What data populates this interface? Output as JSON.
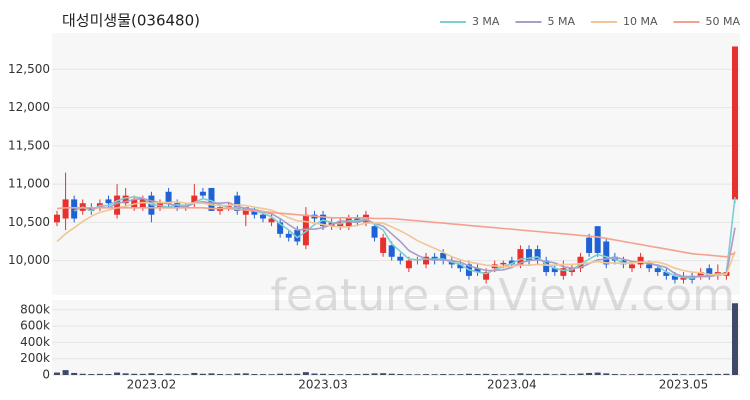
{
  "chart_data": {
    "type": "candlestick",
    "title": "대성미생물(036480)",
    "categories": [
      null,
      null,
      null,
      null,
      null,
      null,
      null,
      null,
      null,
      null,
      null,
      "2023.02",
      null,
      null,
      null,
      null,
      null,
      null,
      null,
      null,
      null,
      null,
      null,
      null,
      null,
      null,
      null,
      null,
      null,
      null,
      null,
      "2023.03",
      null,
      null,
      null,
      null,
      null,
      null,
      null,
      null,
      null,
      null,
      null,
      null,
      null,
      null,
      null,
      null,
      null,
      null,
      null,
      null,
      null,
      "2023.04",
      null,
      null,
      null,
      null,
      null,
      null,
      null,
      null,
      null,
      null,
      null,
      null,
      null,
      null,
      null,
      null,
      null,
      null,
      null,
      "2023.05",
      null,
      null,
      null,
      null,
      null,
      null
    ],
    "open": [
      10500,
      10550,
      10800,
      10650,
      10700,
      10700,
      10800,
      10600,
      10750,
      10700,
      10700,
      10850,
      10700,
      10900,
      10750,
      10700,
      10750,
      10900,
      10950,
      10650,
      10700,
      10850,
      10600,
      10650,
      10600,
      10500,
      10500,
      10350,
      10400,
      10200,
      10600,
      10600,
      10450,
      10450,
      10450,
      10550,
      10500,
      10450,
      10100,
      10200,
      10050,
      9900,
      10000,
      9950,
      10050,
      10100,
      10000,
      9950,
      9950,
      9900,
      9750,
      9900,
      9950,
      10000,
      9950,
      10150,
      10150,
      10000,
      9900,
      9800,
      9850,
      9900,
      10300,
      10450,
      10250,
      10050,
      10000,
      9900,
      9950,
      9950,
      9900,
      9850,
      9800,
      9750,
      9800,
      9800,
      9900,
      9800,
      9800,
      10800
    ],
    "high": [
      10650,
      11150,
      10850,
      10800,
      10750,
      10800,
      10850,
      11000,
      10950,
      10850,
      10850,
      10900,
      10800,
      10950,
      10800,
      10750,
      11000,
      10950,
      10950,
      10750,
      10750,
      10900,
      10700,
      10700,
      10650,
      10600,
      10550,
      10400,
      10450,
      10700,
      10650,
      10650,
      10550,
      10550,
      10600,
      10600,
      10650,
      10500,
      10350,
      10250,
      10100,
      10050,
      10050,
      10100,
      10100,
      10150,
      10050,
      10000,
      10000,
      9950,
      9900,
      10000,
      10000,
      10050,
      10200,
      10200,
      10200,
      10050,
      9950,
      10000,
      9950,
      10100,
      10350,
      10450,
      10300,
      10100,
      10050,
      10000,
      10100,
      10000,
      9950,
      9900,
      9850,
      9850,
      9850,
      9900,
      9950,
      9950,
      9900,
      12800
    ],
    "low": [
      10450,
      10400,
      10500,
      10600,
      10600,
      10650,
      10700,
      10550,
      10700,
      10650,
      10650,
      10500,
      10650,
      10700,
      10650,
      10650,
      10700,
      10800,
      10650,
      10600,
      10650,
      10600,
      10450,
      10550,
      10500,
      10450,
      10300,
      10250,
      10200,
      10150,
      10500,
      10400,
      10400,
      10400,
      10400,
      10450,
      10450,
      10250,
      10050,
      10000,
      9950,
      9850,
      9950,
      9900,
      9950,
      9950,
      9900,
      9850,
      9750,
      9800,
      9700,
      9850,
      9900,
      9900,
      9900,
      9950,
      9950,
      9800,
      9800,
      9750,
      9800,
      9850,
      10050,
      10050,
      9900,
      9950,
      9900,
      9850,
      9900,
      9850,
      9800,
      9750,
      9700,
      9700,
      9700,
      9750,
      9750,
      9750,
      9750,
      10750
    ],
    "close": [
      10600,
      10800,
      10550,
      10750,
      10650,
      10750,
      10750,
      10850,
      10850,
      10800,
      10800,
      10600,
      10750,
      10750,
      10700,
      10720,
      10850,
      10850,
      10650,
      10700,
      10720,
      10650,
      10700,
      10600,
      10550,
      10550,
      10350,
      10300,
      10250,
      10600,
      10550,
      10450,
      10500,
      10500,
      10550,
      10500,
      10600,
      10300,
      10300,
      10050,
      10000,
      10000,
      10020,
      10050,
      10000,
      10000,
      9950,
      9900,
      9800,
      9850,
      9850,
      9950,
      9970,
      9950,
      10150,
      10000,
      10000,
      9850,
      9850,
      9900,
      9900,
      10050,
      10100,
      10100,
      9950,
      10000,
      9950,
      9950,
      10050,
      9900,
      9850,
      9800,
      9750,
      9800,
      9750,
      9850,
      9800,
      9850,
      9850,
      12800
    ],
    "up_color": "#e8302c",
    "down_color": "#1f62d6",
    "ylim": [
      9550,
      12950
    ],
    "yticks": [
      {
        "value": 10000,
        "label": "10,000"
      },
      {
        "value": 10500,
        "label": "10,500"
      },
      {
        "value": 11000,
        "label": "11,000"
      },
      {
        "value": 11500,
        "label": "11,500"
      },
      {
        "value": 12000,
        "label": "12,000"
      },
      {
        "value": 12500,
        "label": "12,500"
      }
    ],
    "grid": true,
    "legend": "top-right",
    "series": [
      {
        "name": "3 MA",
        "color": "#7ccfd0",
        "values": [
          null,
          null,
          10650,
          10700,
          10650,
          10720,
          10720,
          10780,
          10820,
          10830,
          10820,
          10730,
          10720,
          10700,
          10730,
          10720,
          10760,
          10810,
          10780,
          10730,
          10690,
          10690,
          10690,
          10650,
          10620,
          10570,
          10480,
          10400,
          10300,
          10380,
          10470,
          10530,
          10500,
          10480,
          10520,
          10520,
          10550,
          10470,
          10400,
          10220,
          10120,
          10020,
          10010,
          10020,
          10020,
          10020,
          9980,
          9950,
          9880,
          9850,
          9830,
          9880,
          9920,
          9960,
          10020,
          10030,
          10050,
          9950,
          9900,
          9870,
          9880,
          9950,
          10020,
          10080,
          10050,
          10020,
          9970,
          9970,
          9980,
          9970,
          9930,
          9850,
          9800,
          9780,
          9770,
          9800,
          9800,
          9830,
          9830,
          10830
        ]
      },
      {
        "name": "5 MA",
        "color": "#ac9cc8",
        "values": [
          null,
          null,
          null,
          null,
          10670,
          10700,
          10690,
          10750,
          10770,
          10800,
          10810,
          10780,
          10760,
          10740,
          10720,
          10700,
          10750,
          10770,
          10750,
          10750,
          10760,
          10710,
          10680,
          10670,
          10640,
          10610,
          10550,
          10470,
          10400,
          10410,
          10410,
          10430,
          10470,
          10520,
          10510,
          10500,
          10530,
          10490,
          10450,
          10350,
          10250,
          10130,
          10070,
          10020,
          10010,
          10010,
          10000,
          9980,
          9930,
          9900,
          9870,
          9870,
          9880,
          9910,
          9970,
          10000,
          10010,
          9990,
          9970,
          9920,
          9900,
          9910,
          9960,
          10010,
          10020,
          10040,
          10020,
          9990,
          9980,
          9960,
          9940,
          9910,
          9830,
          9790,
          9790,
          9790,
          9790,
          9810,
          9820,
          10430
        ]
      },
      {
        "name": "10 MA",
        "color": "#f1c694",
        "values": [
          10250,
          10350,
          10430,
          10510,
          10580,
          10630,
          10660,
          10690,
          10710,
          10740,
          10760,
          10750,
          10760,
          10760,
          10770,
          10750,
          10750,
          10750,
          10730,
          10720,
          10720,
          10730,
          10720,
          10700,
          10680,
          10660,
          10610,
          10560,
          10520,
          10510,
          10490,
          10470,
          10450,
          10440,
          10440,
          10460,
          10490,
          10490,
          10490,
          10440,
          10390,
          10330,
          10260,
          10210,
          10160,
          10110,
          10050,
          10010,
          9980,
          9960,
          9940,
          9930,
          9920,
          9920,
          9940,
          9940,
          9950,
          9940,
          9940,
          9950,
          9950,
          9960,
          9970,
          9990,
          9970,
          9970,
          9960,
          9970,
          9980,
          9980,
          9980,
          9950,
          9900,
          9870,
          9850,
          9840,
          9820,
          9810,
          9820,
          10120
        ]
      },
      {
        "name": "50 MA",
        "color": "#f3a28f",
        "values": [
          10680,
          10690,
          10690,
          10690,
          10690,
          10690,
          10690,
          10690,
          10690,
          10690,
          10690,
          10690,
          10690,
          10690,
          10690,
          10690,
          10690,
          10690,
          10680,
          10680,
          10680,
          10670,
          10660,
          10650,
          10640,
          10630,
          10620,
          10610,
          10600,
          10590,
          10580,
          10570,
          10560,
          10560,
          10560,
          10560,
          10560,
          10550,
          10550,
          10550,
          10540,
          10530,
          10520,
          10510,
          10500,
          10490,
          10480,
          10470,
          10460,
          10450,
          10440,
          10430,
          10420,
          10410,
          10400,
          10390,
          10380,
          10370,
          10360,
          10350,
          10340,
          10330,
          10320,
          10310,
          10290,
          10270,
          10250,
          10230,
          10210,
          10190,
          10170,
          10150,
          10130,
          10110,
          10090,
          10080,
          10070,
          10060,
          10050,
          10100
        ]
      }
    ],
    "volume": {
      "type": "bar",
      "color": "#3f4a68",
      "values": [
        30000,
        60000,
        25000,
        15000,
        12000,
        14000,
        12000,
        30000,
        20000,
        15000,
        14000,
        22000,
        12000,
        18000,
        12000,
        10000,
        25000,
        15000,
        20000,
        12000,
        10000,
        18000,
        20000,
        12000,
        11000,
        10000,
        16000,
        14000,
        15000,
        35000,
        18000,
        15000,
        12000,
        10000,
        12000,
        11000,
        14000,
        20000,
        22000,
        16000,
        12000,
        10000,
        9000,
        11000,
        10000,
        12000,
        10000,
        11000,
        15000,
        12000,
        14000,
        12000,
        10000,
        11000,
        20000,
        14000,
        12000,
        15000,
        10000,
        14000,
        11000,
        18000,
        25000,
        30000,
        20000,
        12000,
        10000,
        9000,
        14000,
        10000,
        11000,
        12000,
        14000,
        10000,
        11000,
        12000,
        14000,
        13000,
        15000,
        880000
      ],
      "ylim": [
        0,
        920000
      ],
      "yticks": [
        0,
        {
          "value": 200000,
          "label": "200k"
        },
        {
          "value": 400000,
          "label": "400k"
        },
        {
          "value": 600000,
          "label": "600k"
        },
        {
          "value": 800000,
          "label": "800k"
        }
      ]
    }
  },
  "watermark": "feature.enViewV.com"
}
